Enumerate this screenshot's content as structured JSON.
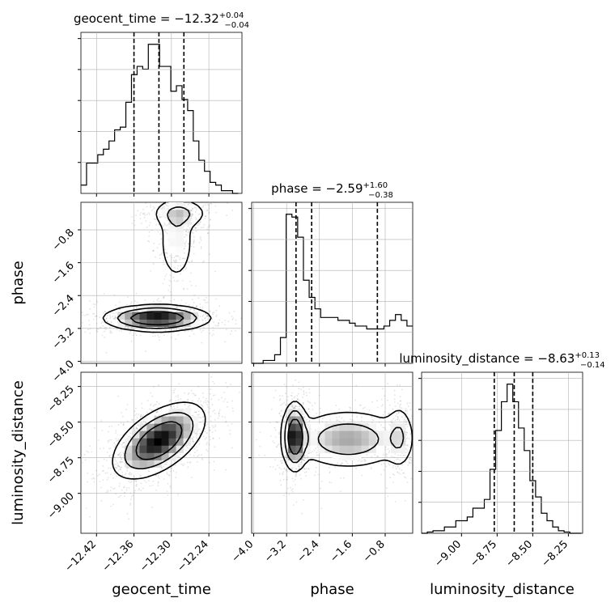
{
  "chart_data": {
    "type": "corner",
    "parameters": [
      "geocent_time",
      "phase",
      "luminosity_distance"
    ],
    "titles": {
      "geocent_time": {
        "name": "geocent_time",
        "median": "−12.32",
        "plus": "+0.04",
        "minus": "−0.04"
      },
      "phase": {
        "name": "phase",
        "median": "−2.59",
        "plus": "+1.60",
        "minus": "−0.38"
      },
      "luminosity_distance": {
        "name": "luminosity_distance",
        "median": "−8.63",
        "plus": "+0.13",
        "minus": "−0.14"
      }
    },
    "axes": {
      "geocent_time": {
        "label": "geocent_time",
        "range": [
          -12.445,
          -12.187
        ],
        "ticks": [
          -12.42,
          -12.36,
          -12.3,
          -12.24
        ],
        "tick_labels": [
          "−12.42",
          "−12.36",
          "−12.30",
          "−12.24"
        ]
      },
      "phase": {
        "label": "phase",
        "range": [
          -4.05,
          -0.13
        ],
        "ticks": [
          -4.0,
          -3.2,
          -2.4,
          -1.6,
          -0.8
        ],
        "tick_labels": [
          "−4.0",
          "−3.2",
          "−2.4",
          "−1.6",
          "−0.8"
        ]
      },
      "luminosity_distance": {
        "label": "luminosity_distance",
        "range": [
          -9.28,
          -8.15
        ],
        "ticks": [
          -9.0,
          -8.75,
          -8.5,
          -8.25
        ],
        "tick_labels": [
          "−9.00",
          "−8.75",
          "−8.50",
          "−8.25"
        ]
      }
    },
    "histograms": {
      "geocent_time": {
        "bin_edges": [
          -12.445,
          -12.436,
          -12.427,
          -12.418,
          -12.409,
          -12.4,
          -12.391,
          -12.382,
          -12.373,
          -12.364,
          -12.355,
          -12.346,
          -12.337,
          -12.328,
          -12.319,
          -12.31,
          -12.301,
          -12.292,
          -12.283,
          -12.274,
          -12.265,
          -12.256,
          -12.247,
          -12.238,
          -12.229,
          -12.22,
          -12.211,
          -12.202,
          -12.193
        ],
        "counts": [
          3,
          11,
          11,
          14,
          16,
          19,
          23,
          24,
          33,
          43,
          46,
          45,
          54,
          54,
          46,
          46,
          37,
          39,
          34,
          30,
          19,
          12,
          8,
          4,
          3,
          1,
          1,
          0
        ],
        "quantiles": [
          -12.36,
          -12.32,
          -12.28
        ]
      },
      "phase": {
        "bin_edges": [
          -4.05,
          -3.91,
          -3.77,
          -3.63,
          -3.49,
          -3.35,
          -3.21,
          -3.07,
          -2.93,
          -2.79,
          -2.65,
          -2.51,
          -2.37,
          -2.23,
          -2.09,
          -1.95,
          -1.81,
          -1.67,
          -1.53,
          -1.39,
          -1.25,
          -1.11,
          -0.97,
          -0.83,
          -0.69,
          -0.55,
          -0.41,
          -0.27,
          -0.13
        ],
        "counts": [
          0,
          0,
          1,
          1,
          3,
          9,
          52,
          51,
          44,
          29,
          23,
          19,
          16,
          16,
          16,
          15,
          15,
          14,
          13,
          13,
          12,
          12,
          12,
          13,
          15,
          17,
          15,
          13
        ],
        "quantiles": [
          -2.97,
          -2.59,
          -0.99
        ]
      },
      "luminosity_distance": {
        "bin_edges": [
          -9.28,
          -9.24,
          -9.2,
          -9.16,
          -9.12,
          -9.08,
          -9.04,
          -9.0,
          -8.96,
          -8.92,
          -8.88,
          -8.84,
          -8.8,
          -8.76,
          -8.72,
          -8.68,
          -8.64,
          -8.6,
          -8.56,
          -8.52,
          -8.48,
          -8.44,
          -8.4,
          -8.36,
          -8.32,
          -8.28,
          -8.24,
          -8.2,
          -8.16
        ],
        "counts": [
          0,
          1,
          2,
          2,
          5,
          5,
          10,
          10,
          13,
          20,
          20,
          27,
          51,
          82,
          105,
          119,
          105,
          84,
          66,
          42,
          29,
          16,
          10,
          5,
          2,
          1,
          0,
          0
        ],
        "quantiles": [
          -8.77,
          -8.63,
          -8.5
        ]
      }
    },
    "pairs": [
      {
        "x": "geocent_time",
        "y": "phase",
        "components": [
          {
            "center": [
              -12.323,
              -2.95
            ],
            "sd": [
              0.042,
              0.16
            ],
            "weight": 0.62
          },
          {
            "center": [
              -12.292,
              -1.1
            ],
            "sd": [
              0.016,
              0.55
            ],
            "weight": 0.18
          },
          {
            "center": [
              -12.286,
              -0.4
            ],
            "sd": [
              0.025,
              0.2
            ],
            "weight": 0.2
          }
        ]
      },
      {
        "x": "geocent_time",
        "y": "luminosity_distance",
        "components": [
          {
            "center": [
              -12.32,
              -8.63
            ],
            "sd": [
              0.036,
              0.13
            ],
            "weight": 1.0,
            "corr": 0.55
          }
        ]
      },
      {
        "x": "phase",
        "y": "luminosity_distance",
        "components": [
          {
            "center": [
              -3.0,
              -8.6
            ],
            "sd": [
              0.15,
              0.12
            ],
            "weight": 0.55
          },
          {
            "center": [
              -1.7,
              -8.62
            ],
            "sd": [
              0.75,
              0.11
            ],
            "weight": 0.3
          },
          {
            "center": [
              -0.45,
              -8.6
            ],
            "sd": [
              0.18,
              0.13
            ],
            "weight": 0.15
          }
        ]
      }
    ],
    "grid": true,
    "colors": {
      "lines": "#000000",
      "grid": "#b0b0b0",
      "samples": "#808080",
      "quantile_line": "#000000"
    }
  }
}
